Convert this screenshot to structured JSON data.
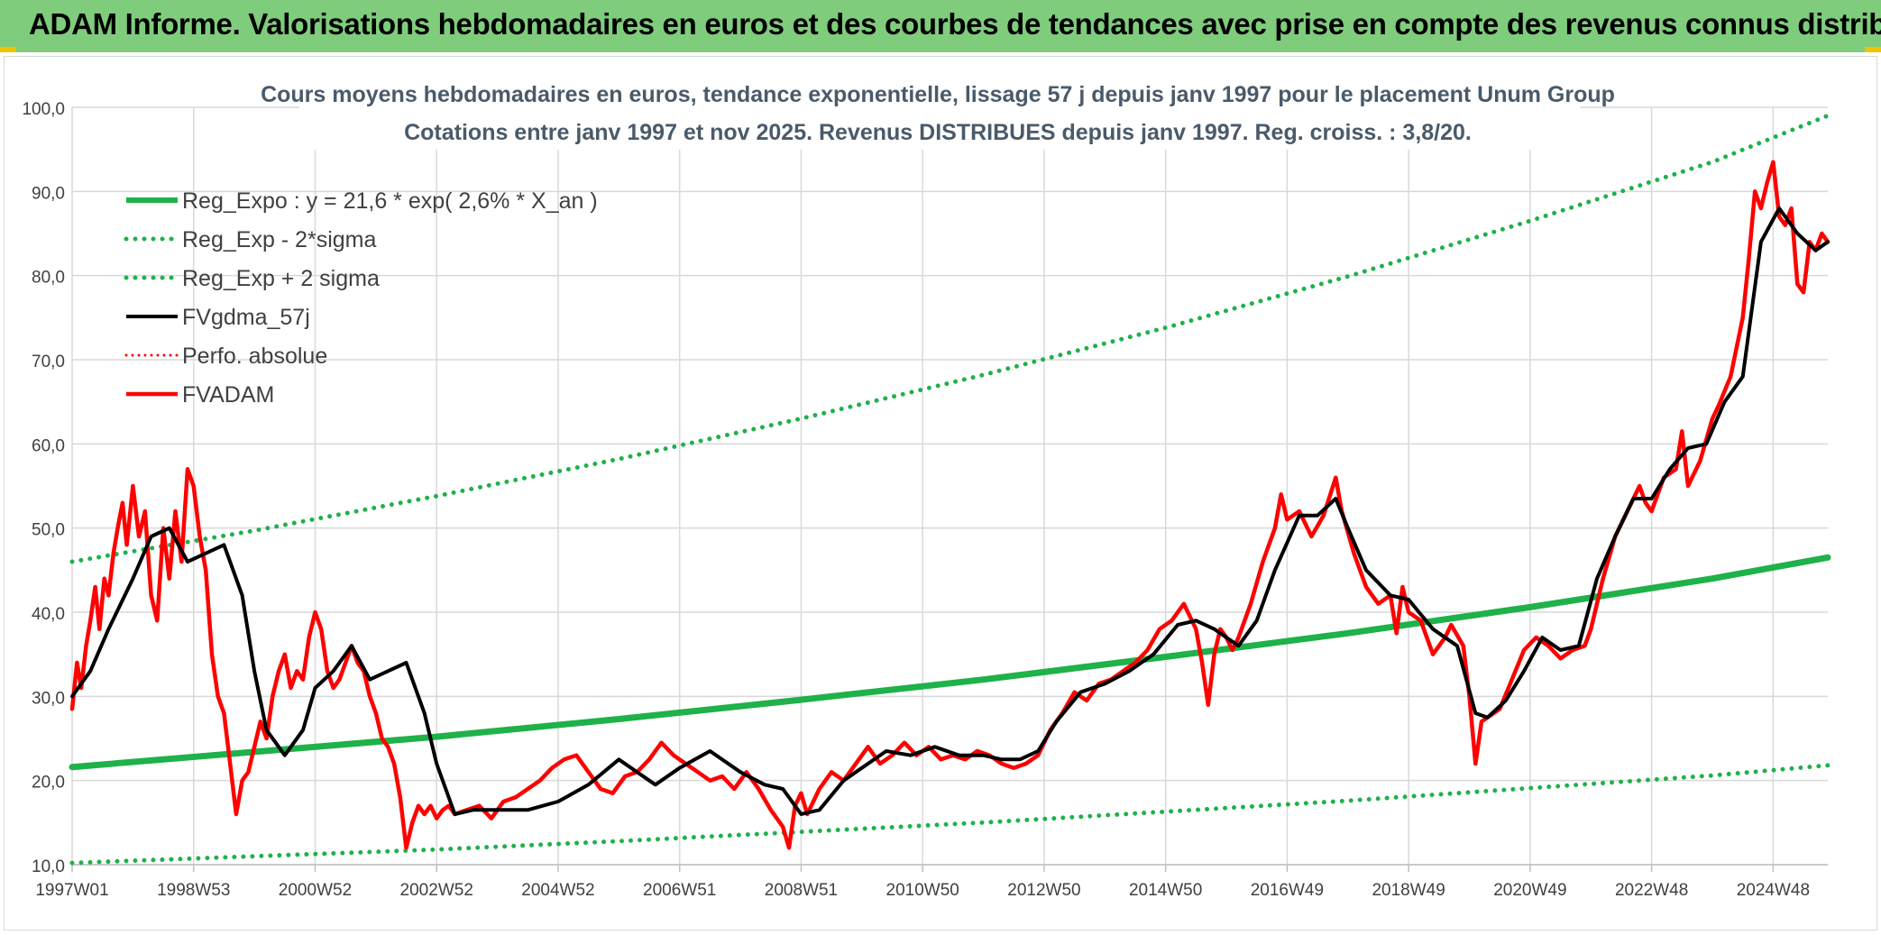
{
  "header": {
    "title": "ADAM Informe. Valorisations hebdomadaires en euros et des courbes de tendances avec prise en compte des revenus connus distribués"
  },
  "colors": {
    "banner": "#7fcc7d",
    "reg_expo": "#1fb14a",
    "reg_sigma": "#1fb14a",
    "fvgdma": "#000000",
    "perfo": "#ff0000",
    "fvadam": "#ff0000",
    "accent_corner": "#f2c200"
  },
  "chart_data": {
    "type": "line",
    "title": "Cours moyens hebdomadaires en euros, tendance exponentielle, lissage 57 j depuis janv 1997 pour le placement Unum Group",
    "subtitle": "Cotations entre janv 1997 et nov 2025. Revenus DISTRIBUES depuis janv 1997. Reg. croiss. : 3,8/20.",
    "xlabel": "",
    "ylabel": "",
    "ylim": [
      10,
      100
    ],
    "y_ticks": [
      "10,0",
      "20,0",
      "30,0",
      "40,0",
      "50,0",
      "60,0",
      "70,0",
      "80,0",
      "90,0",
      "100,0"
    ],
    "xlim": [
      1997.0,
      2025.9
    ],
    "x_ticks": [
      {
        "label": "1997W01",
        "x": 1997.0
      },
      {
        "label": "1998W53",
        "x": 1999.0
      },
      {
        "label": "2000W52",
        "x": 2001.0
      },
      {
        "label": "2002W52",
        "x": 2003.0
      },
      {
        "label": "2004W52",
        "x": 2005.0
      },
      {
        "label": "2006W51",
        "x": 2007.0
      },
      {
        "label": "2008W51",
        "x": 2009.0
      },
      {
        "label": "2010W50",
        "x": 2011.0
      },
      {
        "label": "2012W50",
        "x": 2013.0
      },
      {
        "label": "2014W50",
        "x": 2015.0
      },
      {
        "label": "2016W49",
        "x": 2017.0
      },
      {
        "label": "2018W49",
        "x": 2019.0
      },
      {
        "label": "2020W49",
        "x": 2021.0
      },
      {
        "label": "2022W48",
        "x": 2023.0
      },
      {
        "label": "2024W48",
        "x": 2025.0
      }
    ],
    "grid": true,
    "legend_position": "top-left",
    "series": [
      {
        "name": "Reg_Expo : y = 21,6 * exp( 2,6% *  X_an )",
        "style": "solid-thick",
        "x": [
          1997.0,
          2000.0,
          2003.0,
          2006.0,
          2009.0,
          2012.0,
          2015.0,
          2018.0,
          2021.0,
          2024.0,
          2025.9
        ],
        "y": [
          21.6,
          23.4,
          25.2,
          27.3,
          29.6,
          32.0,
          34.7,
          37.5,
          40.6,
          44.0,
          46.5
        ]
      },
      {
        "name": "Reg_Exp - 2*sigma",
        "style": "dotted",
        "x": [
          1997.0,
          2000.0,
          2003.0,
          2006.0,
          2009.0,
          2012.0,
          2015.0,
          2018.0,
          2021.0,
          2024.0,
          2025.9
        ],
        "y": [
          10.2,
          11.0,
          11.8,
          12.8,
          13.9,
          15.0,
          16.3,
          17.6,
          19.1,
          20.6,
          21.8
        ]
      },
      {
        "name": "Reg_Exp + 2 sigma",
        "style": "dotted",
        "x": [
          1997.0,
          2000.0,
          2003.0,
          2006.0,
          2009.0,
          2012.0,
          2015.0,
          2018.0,
          2021.0,
          2024.0,
          2025.9
        ],
        "y": [
          46.0,
          49.7,
          53.8,
          58.2,
          63.0,
          68.2,
          73.8,
          79.9,
          86.5,
          93.5,
          99.0
        ]
      },
      {
        "name": "FVgdma_57j",
        "style": "solid-black",
        "x": [
          1997.0,
          1997.3,
          1997.6,
          1998.0,
          1998.3,
          1998.6,
          1998.9,
          1999.2,
          1999.5,
          1999.8,
          2000.0,
          2000.2,
          2000.5,
          2000.8,
          2001.0,
          2001.3,
          2001.6,
          2001.9,
          2002.2,
          2002.5,
          2002.8,
          2003.0,
          2003.3,
          2003.6,
          2004.0,
          2004.5,
          2005.0,
          2005.5,
          2006.0,
          2006.3,
          2006.6,
          2007.0,
          2007.5,
          2008.0,
          2008.4,
          2008.7,
          2009.0,
          2009.3,
          2009.7,
          2010.0,
          2010.4,
          2010.8,
          2011.2,
          2011.6,
          2012.0,
          2012.3,
          2012.6,
          2012.9,
          2013.2,
          2013.6,
          2014.0,
          2014.4,
          2014.8,
          2015.2,
          2015.5,
          2015.8,
          2016.2,
          2016.5,
          2016.8,
          2017.2,
          2017.5,
          2017.8,
          2018.0,
          2018.3,
          2018.7,
          2019.0,
          2019.4,
          2019.8,
          2020.1,
          2020.3,
          2020.6,
          2020.9,
          2021.2,
          2021.5,
          2021.8,
          2022.1,
          2022.4,
          2022.7,
          2023.0,
          2023.3,
          2023.6,
          2023.9,
          2024.2,
          2024.5,
          2024.8,
          2025.1,
          2025.4,
          2025.7,
          2025.9
        ],
        "y": [
          30,
          33,
          38,
          44,
          49,
          50,
          46,
          47,
          48,
          42,
          33,
          26,
          23,
          26,
          31,
          33,
          36,
          32,
          33,
          34,
          28,
          22,
          16,
          16.5,
          16.5,
          16.5,
          17.5,
          19.5,
          22.5,
          21,
          19.5,
          21.5,
          23.5,
          21,
          19.5,
          19,
          16,
          16.5,
          20,
          21.5,
          23.5,
          23,
          24,
          23,
          23,
          22.5,
          22.5,
          23.5,
          27,
          30.5,
          31.5,
          33,
          35,
          38.5,
          39,
          38,
          36,
          39,
          45,
          51.5,
          51.5,
          53.5,
          50,
          45,
          42,
          41.5,
          38,
          36,
          28,
          27.5,
          29.5,
          33,
          37,
          35.5,
          36,
          44,
          49,
          53.5,
          53.5,
          57,
          59.5,
          60,
          65,
          68,
          84,
          88,
          85,
          83,
          84
        ]
      },
      {
        "name": "Perfo. absolue",
        "style": "dotted-red",
        "x": [],
        "y": []
      },
      {
        "name": "FVADAM",
        "style": "solid-red",
        "x": [
          1997.0,
          1997.08,
          1997.15,
          1997.23,
          1997.3,
          1997.38,
          1997.45,
          1997.53,
          1997.6,
          1997.68,
          1997.75,
          1997.83,
          1997.9,
          1998.0,
          1998.1,
          1998.2,
          1998.3,
          1998.4,
          1998.5,
          1998.6,
          1998.7,
          1998.8,
          1998.9,
          1999.0,
          1999.1,
          1999.2,
          1999.3,
          1999.4,
          1999.5,
          1999.6,
          1999.7,
          1999.8,
          1999.9,
          2000.0,
          2000.1,
          2000.2,
          2000.3,
          2000.4,
          2000.5,
          2000.6,
          2000.7,
          2000.8,
          2000.9,
          2001.0,
          2001.1,
          2001.2,
          2001.3,
          2001.4,
          2001.5,
          2001.6,
          2001.7,
          2001.8,
          2001.9,
          2002.0,
          2002.1,
          2002.2,
          2002.3,
          2002.4,
          2002.5,
          2002.6,
          2002.7,
          2002.8,
          2002.9,
          2003.0,
          2003.1,
          2003.2,
          2003.3,
          2003.5,
          2003.7,
          2003.9,
          2004.1,
          2004.3,
          2004.5,
          2004.7,
          2004.9,
          2005.1,
          2005.3,
          2005.5,
          2005.7,
          2005.9,
          2006.1,
          2006.3,
          2006.5,
          2006.7,
          2006.9,
          2007.1,
          2007.3,
          2007.5,
          2007.7,
          2007.9,
          2008.1,
          2008.3,
          2008.5,
          2008.7,
          2008.8,
          2008.9,
          2009.0,
          2009.1,
          2009.3,
          2009.5,
          2009.7,
          2009.9,
          2010.1,
          2010.3,
          2010.5,
          2010.7,
          2010.9,
          2011.1,
          2011.3,
          2011.5,
          2011.7,
          2011.9,
          2012.1,
          2012.3,
          2012.5,
          2012.7,
          2012.9,
          2013.1,
          2013.3,
          2013.5,
          2013.7,
          2013.9,
          2014.1,
          2014.3,
          2014.5,
          2014.7,
          2014.9,
          2015.1,
          2015.3,
          2015.5,
          2015.6,
          2015.7,
          2015.8,
          2015.9,
          2016.0,
          2016.1,
          2016.2,
          2016.4,
          2016.6,
          2016.8,
          2016.9,
          2017.0,
          2017.2,
          2017.4,
          2017.6,
          2017.8,
          2017.9,
          2018.1,
          2018.3,
          2018.5,
          2018.7,
          2018.8,
          2018.9,
          2019.0,
          2019.2,
          2019.4,
          2019.6,
          2019.7,
          2019.9,
          2020.0,
          2020.1,
          2020.2,
          2020.3,
          2020.5,
          2020.7,
          2020.9,
          2021.1,
          2021.3,
          2021.5,
          2021.7,
          2021.9,
          2022.0,
          2022.2,
          2022.4,
          2022.6,
          2022.8,
          2022.9,
          2023.0,
          2023.2,
          2023.4,
          2023.5,
          2023.6,
          2023.8,
          2024.0,
          2024.1,
          2024.3,
          2024.5,
          2024.6,
          2024.7,
          2024.8,
          2024.9,
          2025.0,
          2025.1,
          2025.2,
          2025.3,
          2025.4,
          2025.5,
          2025.6,
          2025.7,
          2025.8,
          2025.9
        ],
        "y": [
          28.5,
          34,
          31,
          36,
          39,
          43,
          38,
          44,
          42,
          47,
          50,
          53,
          48,
          55,
          49,
          52,
          42,
          39,
          50,
          44,
          52,
          46,
          57,
          55,
          49,
          45,
          35,
          30,
          28,
          22,
          16,
          20,
          21,
          24,
          27,
          25,
          30,
          33,
          35,
          31,
          33,
          32,
          37,
          40,
          38,
          33,
          31,
          32,
          34,
          36,
          34,
          33,
          30,
          28,
          25,
          24,
          22,
          18,
          12,
          15,
          17,
          16,
          17,
          15.5,
          16.5,
          17,
          16,
          16.5,
          17,
          15.5,
          17.5,
          18,
          19,
          20,
          21.5,
          22.5,
          23,
          21,
          19,
          18.5,
          20.5,
          21,
          22.5,
          24.5,
          23,
          22,
          21,
          20,
          20.5,
          19,
          21,
          19,
          16.5,
          14.5,
          12,
          17,
          18.5,
          16,
          19,
          21,
          20,
          22,
          24,
          22,
          23,
          24.5,
          23,
          24,
          22.5,
          23,
          22.5,
          23.5,
          23,
          22,
          21.5,
          22,
          23,
          26,
          28,
          30.5,
          29.5,
          31.5,
          32,
          33,
          34,
          35.5,
          38,
          39,
          41,
          38,
          34,
          29,
          35,
          38,
          37,
          35.5,
          37,
          41,
          46,
          50,
          54,
          51,
          52,
          49,
          51.5,
          56,
          52,
          47,
          43,
          41,
          42,
          37.5,
          43,
          40,
          39,
          35,
          37,
          38.5,
          36,
          30,
          22,
          27,
          27.5,
          28.5,
          32,
          35.5,
          37,
          36,
          34.5,
          35.5,
          36,
          38,
          44,
          49,
          52,
          55,
          53,
          52,
          56,
          57,
          61.5,
          55,
          58,
          63,
          64.5,
          68,
          75,
          82,
          90,
          88,
          91,
          93.5,
          87,
          86,
          88,
          79,
          78,
          84,
          83,
          85,
          84
        ]
      }
    ]
  }
}
